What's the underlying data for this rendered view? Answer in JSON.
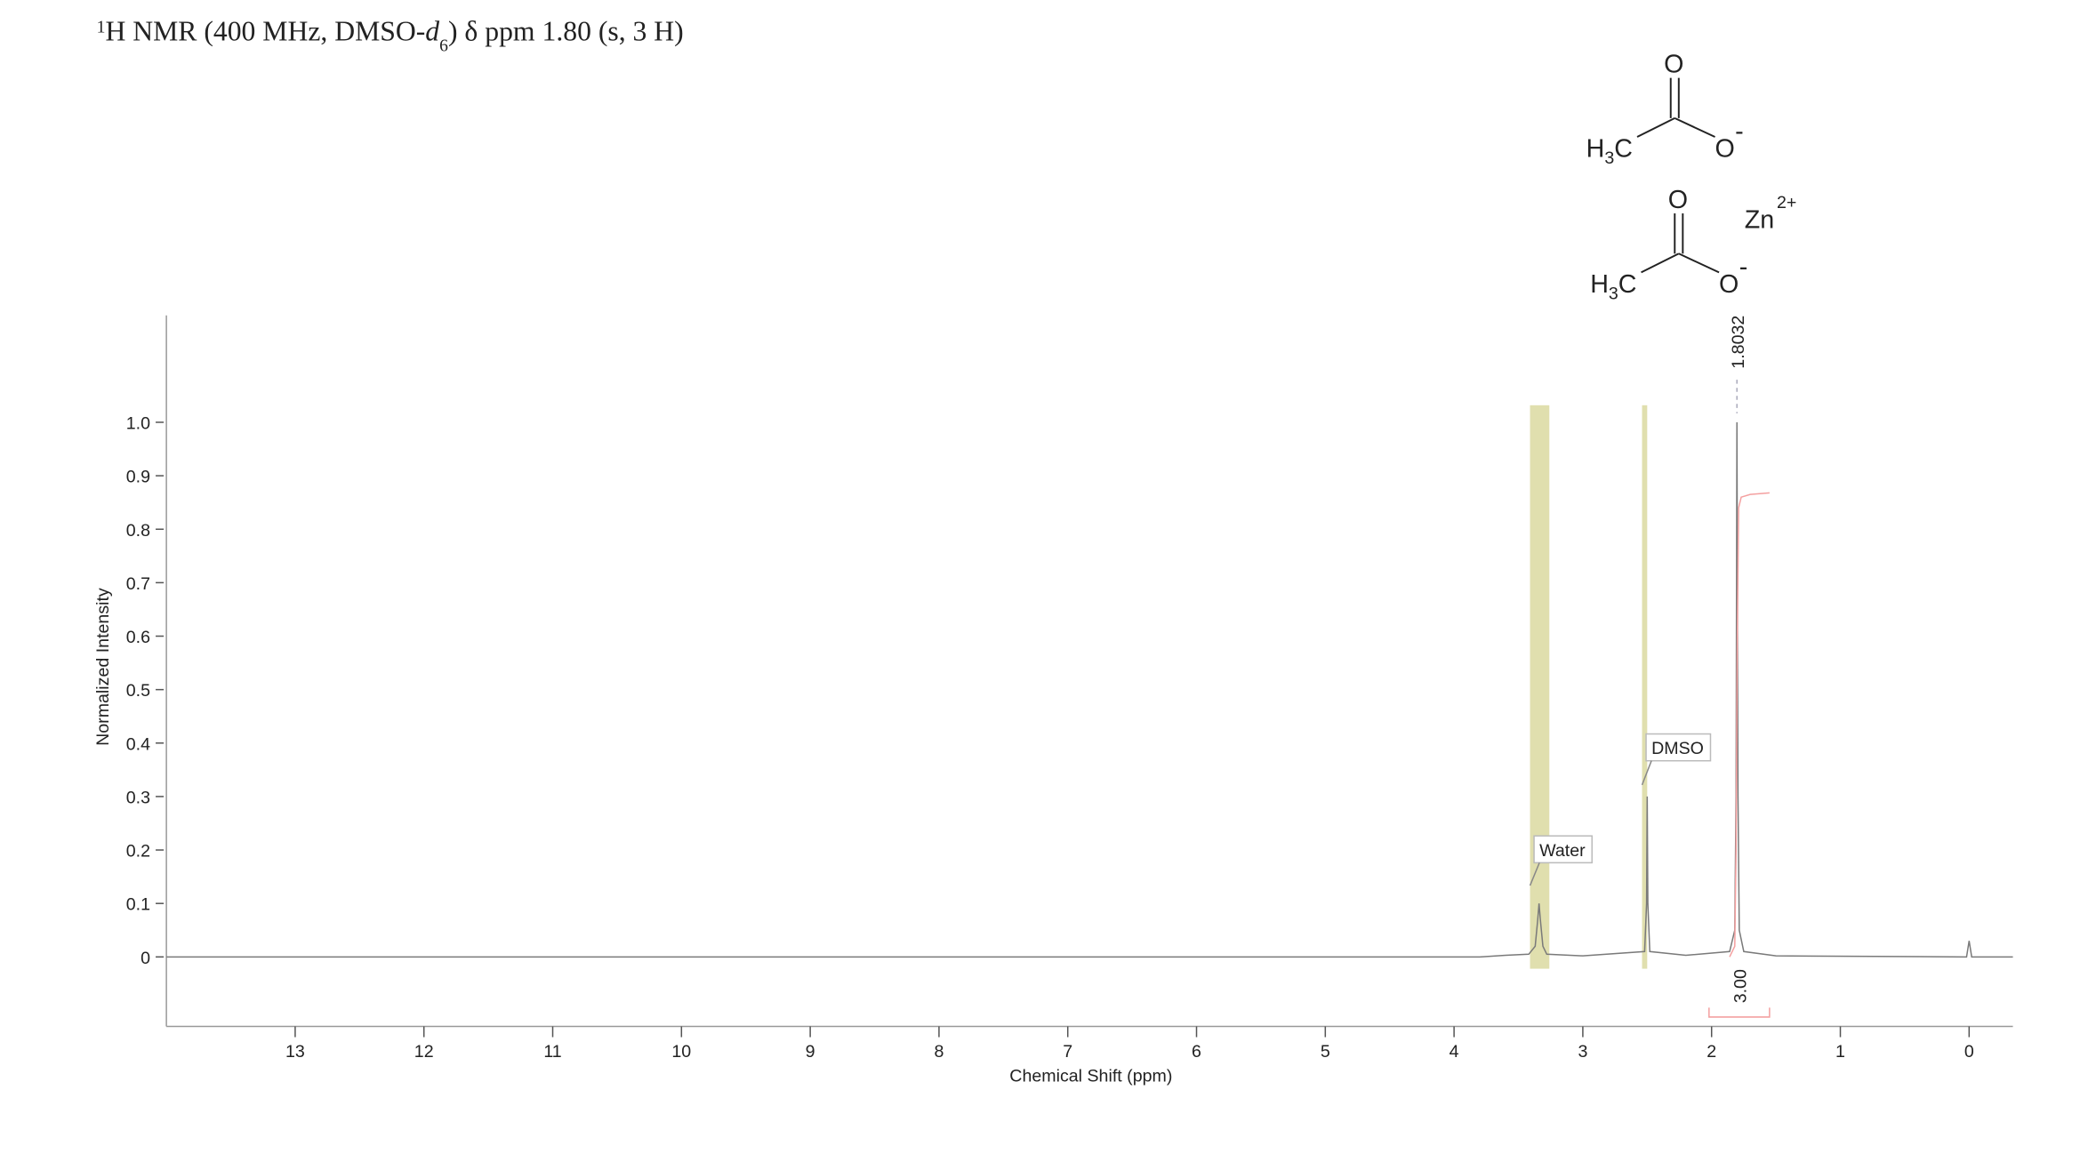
{
  "title_parts": [
    "1",
    "H NMR (400 MHz, DMSO-",
    "d",
    "6",
    ") δ ppm 1.80 (s, 3 H)"
  ],
  "structure": {
    "carbonyl_o": "O",
    "methyl": [
      "H",
      "3",
      "C"
    ],
    "oxygen": "O",
    "charge": "-",
    "metal": "Zn",
    "metal_charge": "2+"
  },
  "chart_data": {
    "type": "line",
    "x_label": "Chemical Shift (ppm)",
    "y_label": "Normalized Intensity",
    "xlim": [
      14,
      -0.34
    ],
    "xticks": [
      13,
      12,
      11,
      10,
      9,
      8,
      7,
      6,
      5,
      4,
      3,
      2,
      1,
      0
    ],
    "ylim": [
      -0.13,
      1.2
    ],
    "yticks": [
      0,
      0.1,
      0.2,
      0.3,
      0.4,
      0.5,
      0.6,
      0.7,
      0.8,
      0.9,
      {
        "value": 1,
        "label": "1.0"
      }
    ],
    "series": [
      {
        "color": "#7a7a7a",
        "x": [
          14,
          3.8,
          3.6,
          3.42,
          3.37,
          3.35,
          3.34,
          3.33,
          3.31,
          3.28,
          3.0,
          2.52,
          2.505,
          2.5,
          2.495,
          2.48,
          2.2,
          1.86,
          1.82,
          1.81,
          1.8032,
          1.795,
          1.785,
          1.75,
          1.5,
          0.02,
          0,
          -0.02,
          -0.34
        ],
        "values": [
          0,
          0,
          0.003,
          0.005,
          0.02,
          0.07,
          0.1,
          0.07,
          0.02,
          0.005,
          0.002,
          0.01,
          0.1,
          0.3,
          0.1,
          0.01,
          0.003,
          0.01,
          0.05,
          0.3,
          1.0,
          0.3,
          0.05,
          0.01,
          0.002,
          0,
          0.03,
          0,
          0
        ]
      }
    ],
    "integral_curve": {
      "color": "#f4a0a0",
      "x": [
        1.86,
        1.82,
        1.81,
        1.8,
        1.79,
        1.77,
        1.7,
        1.55
      ],
      "values": [
        0,
        0.02,
        0.2,
        0.6,
        0.84,
        0.86,
        0.865,
        0.868
      ]
    },
    "integrals": [
      {
        "range": [
          2.02,
          1.55
        ],
        "value": 3,
        "label": "3.00",
        "color": "#e0202a"
      }
    ],
    "peaks": [
      {
        "x": 1.8032,
        "label": "1.8032",
        "color": "#1a1a8c"
      }
    ],
    "solvent_regions": [
      {
        "name": "Water",
        "range": [
          3.41,
          3.26
        ]
      },
      {
        "name": "DMSO",
        "range": [
          2.54,
          2.5
        ]
      }
    ],
    "region_color": "#e0dfae"
  }
}
